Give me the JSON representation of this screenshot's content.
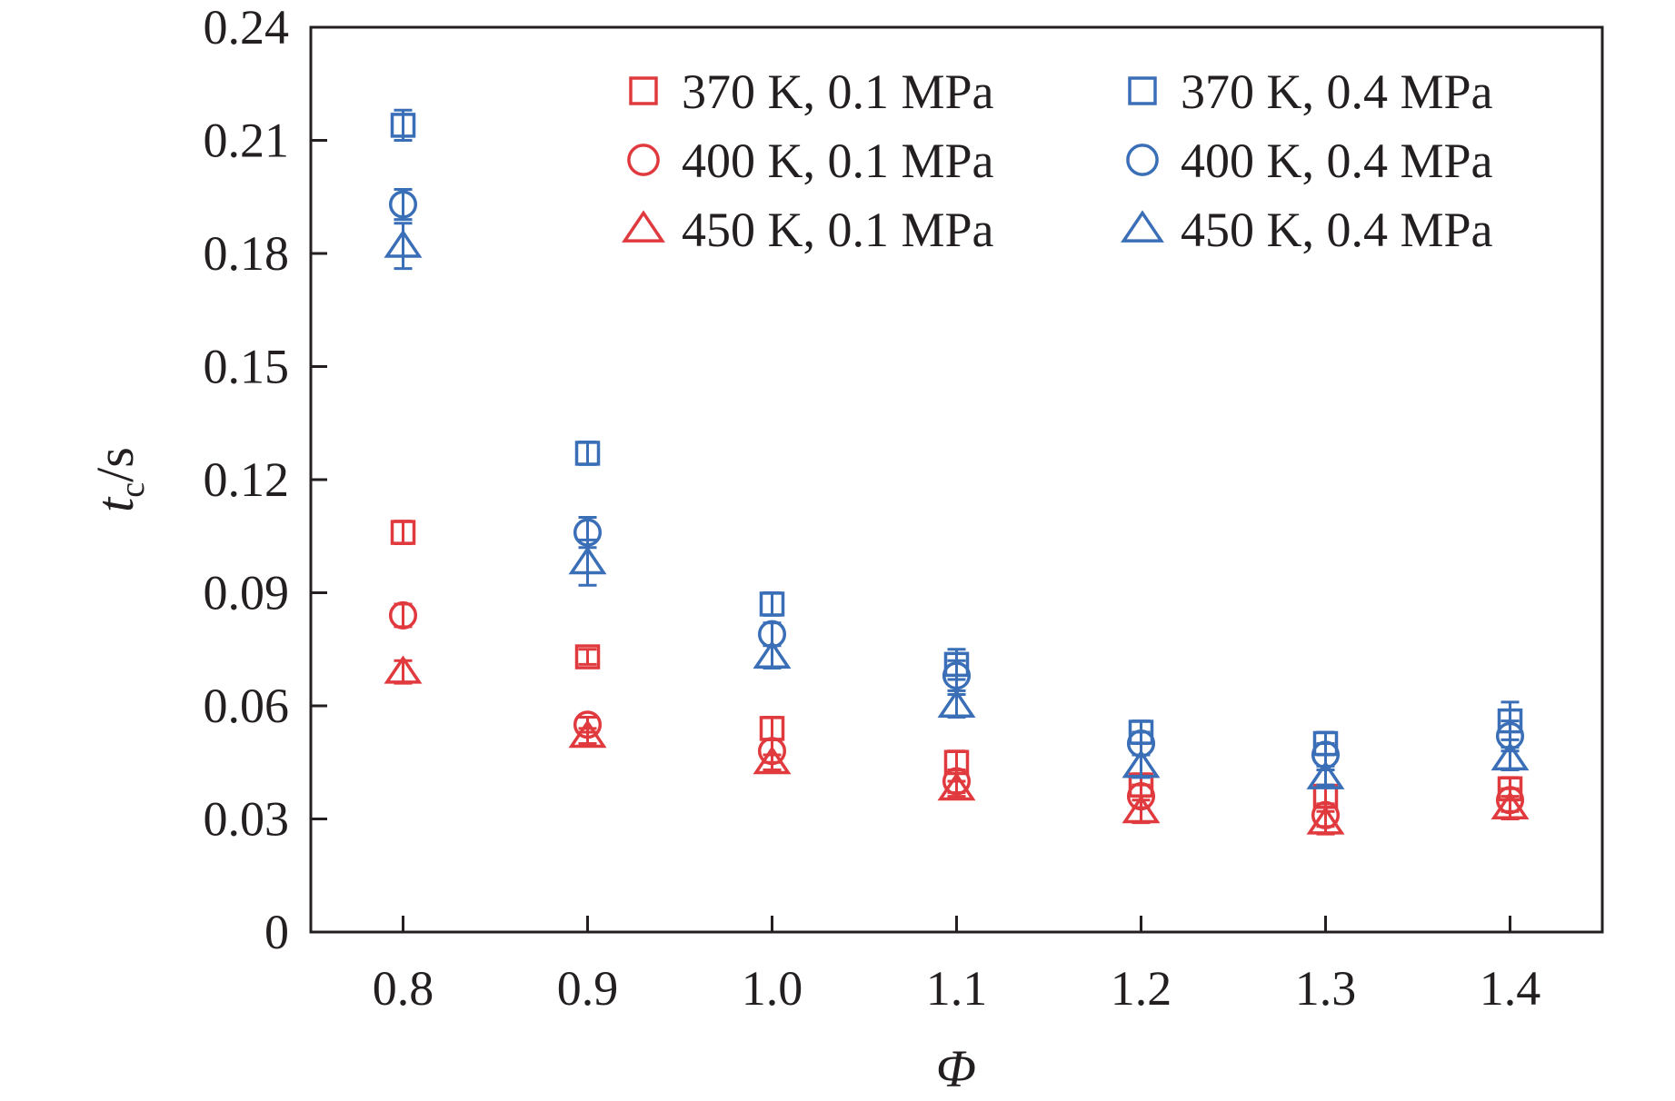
{
  "chart_data": {
    "type": "scatter",
    "xlabel": "Φ",
    "ylabel": {
      "main": "t",
      "sub": "c",
      "unit": "/s"
    },
    "xlim": [
      0.75,
      1.45
    ],
    "ylim": [
      0,
      0.24
    ],
    "x_ticks": [
      "0.8",
      "0.9",
      "1.0",
      "1.1",
      "1.2",
      "1.3",
      "1.4"
    ],
    "y_ticks": [
      "0",
      "0.03",
      "0.06",
      "0.09",
      "0.12",
      "0.15",
      "0.18",
      "0.21",
      "0.24"
    ],
    "grid": false,
    "legend_position": "top-right",
    "error_bars": true,
    "x": [
      0.8,
      0.9,
      1.0,
      1.1,
      1.2,
      1.3,
      1.4
    ],
    "series": [
      {
        "name": "370 K, 0.1 MPa",
        "marker": "square",
        "color": "#e03a3e",
        "values": [
          0.106,
          0.073,
          0.054,
          0.045,
          0.039,
          0.036,
          0.038
        ],
        "errors": [
          0.003,
          0.002,
          0.003,
          0.003,
          0.003,
          0.003,
          0.003
        ]
      },
      {
        "name": "400 K, 0.1 MPa",
        "marker": "circle",
        "color": "#e03a3e",
        "values": [
          0.084,
          0.055,
          0.048,
          0.04,
          0.036,
          0.031,
          0.035
        ],
        "errors": [
          0.003,
          0.002,
          0.003,
          0.003,
          0.003,
          0.003,
          0.003
        ]
      },
      {
        "name": "450 K, 0.1 MPa",
        "marker": "triangle",
        "color": "#e03a3e",
        "values": [
          0.069,
          0.052,
          0.045,
          0.038,
          0.032,
          0.029,
          0.033
        ],
        "errors": [
          0.003,
          0.002,
          0.002,
          0.002,
          0.003,
          0.003,
          0.003
        ]
      },
      {
        "name": "370 K, 0.4 MPa",
        "marker": "square",
        "color": "#3a6fb8",
        "values": [
          0.214,
          0.127,
          0.087,
          0.071,
          0.053,
          0.05,
          0.056
        ],
        "errors": [
          0.004,
          0.003,
          0.003,
          0.004,
          0.003,
          0.003,
          0.005
        ]
      },
      {
        "name": "400 K, 0.4 MPa",
        "marker": "circle",
        "color": "#3a6fb8",
        "values": [
          0.193,
          0.106,
          0.079,
          0.068,
          0.05,
          0.047,
          0.052
        ],
        "errors": [
          0.004,
          0.004,
          0.003,
          0.004,
          0.003,
          0.003,
          0.004
        ]
      },
      {
        "name": "450 K, 0.4 MPa",
        "marker": "triangle",
        "color": "#3a6fb8",
        "values": [
          0.182,
          0.098,
          0.073,
          0.06,
          0.044,
          0.041,
          0.046
        ],
        "errors": [
          0.006,
          0.006,
          0.003,
          0.003,
          0.003,
          0.002,
          0.003
        ]
      }
    ]
  }
}
